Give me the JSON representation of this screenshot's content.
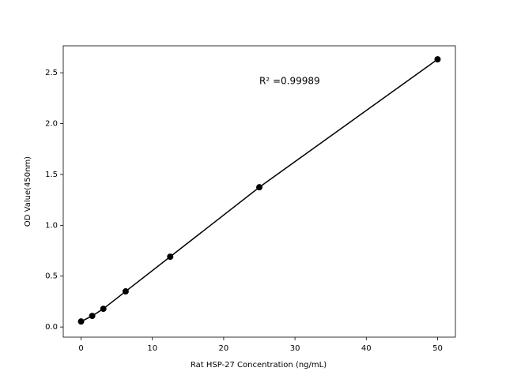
{
  "chart_data": {
    "type": "line",
    "x_label": "Rat HSP-27 Concentration (ng/mL)",
    "y_label": "OD Value(450nm)",
    "annotation": "R² =0.99989",
    "x": [
      0,
      1.5625,
      3.125,
      6.25,
      12.5,
      25,
      50
    ],
    "series": [
      {
        "color": "#000000",
        "values": [
          0.054,
          0.109,
          0.179,
          0.35,
          0.691,
          1.374,
          2.632
        ]
      }
    ],
    "xlim": [
      -2.5,
      52.5
    ],
    "xticks": [
      0,
      10,
      20,
      30,
      40,
      50
    ],
    "ylim": [
      -0.1,
      2.765
    ],
    "yticks": [
      {
        "value": 0,
        "label": "0.0"
      },
      0.5,
      {
        "value": 1,
        "label": "1.0"
      },
      1.5,
      {
        "value": 2,
        "label": "2.0"
      },
      2.5
    ]
  }
}
